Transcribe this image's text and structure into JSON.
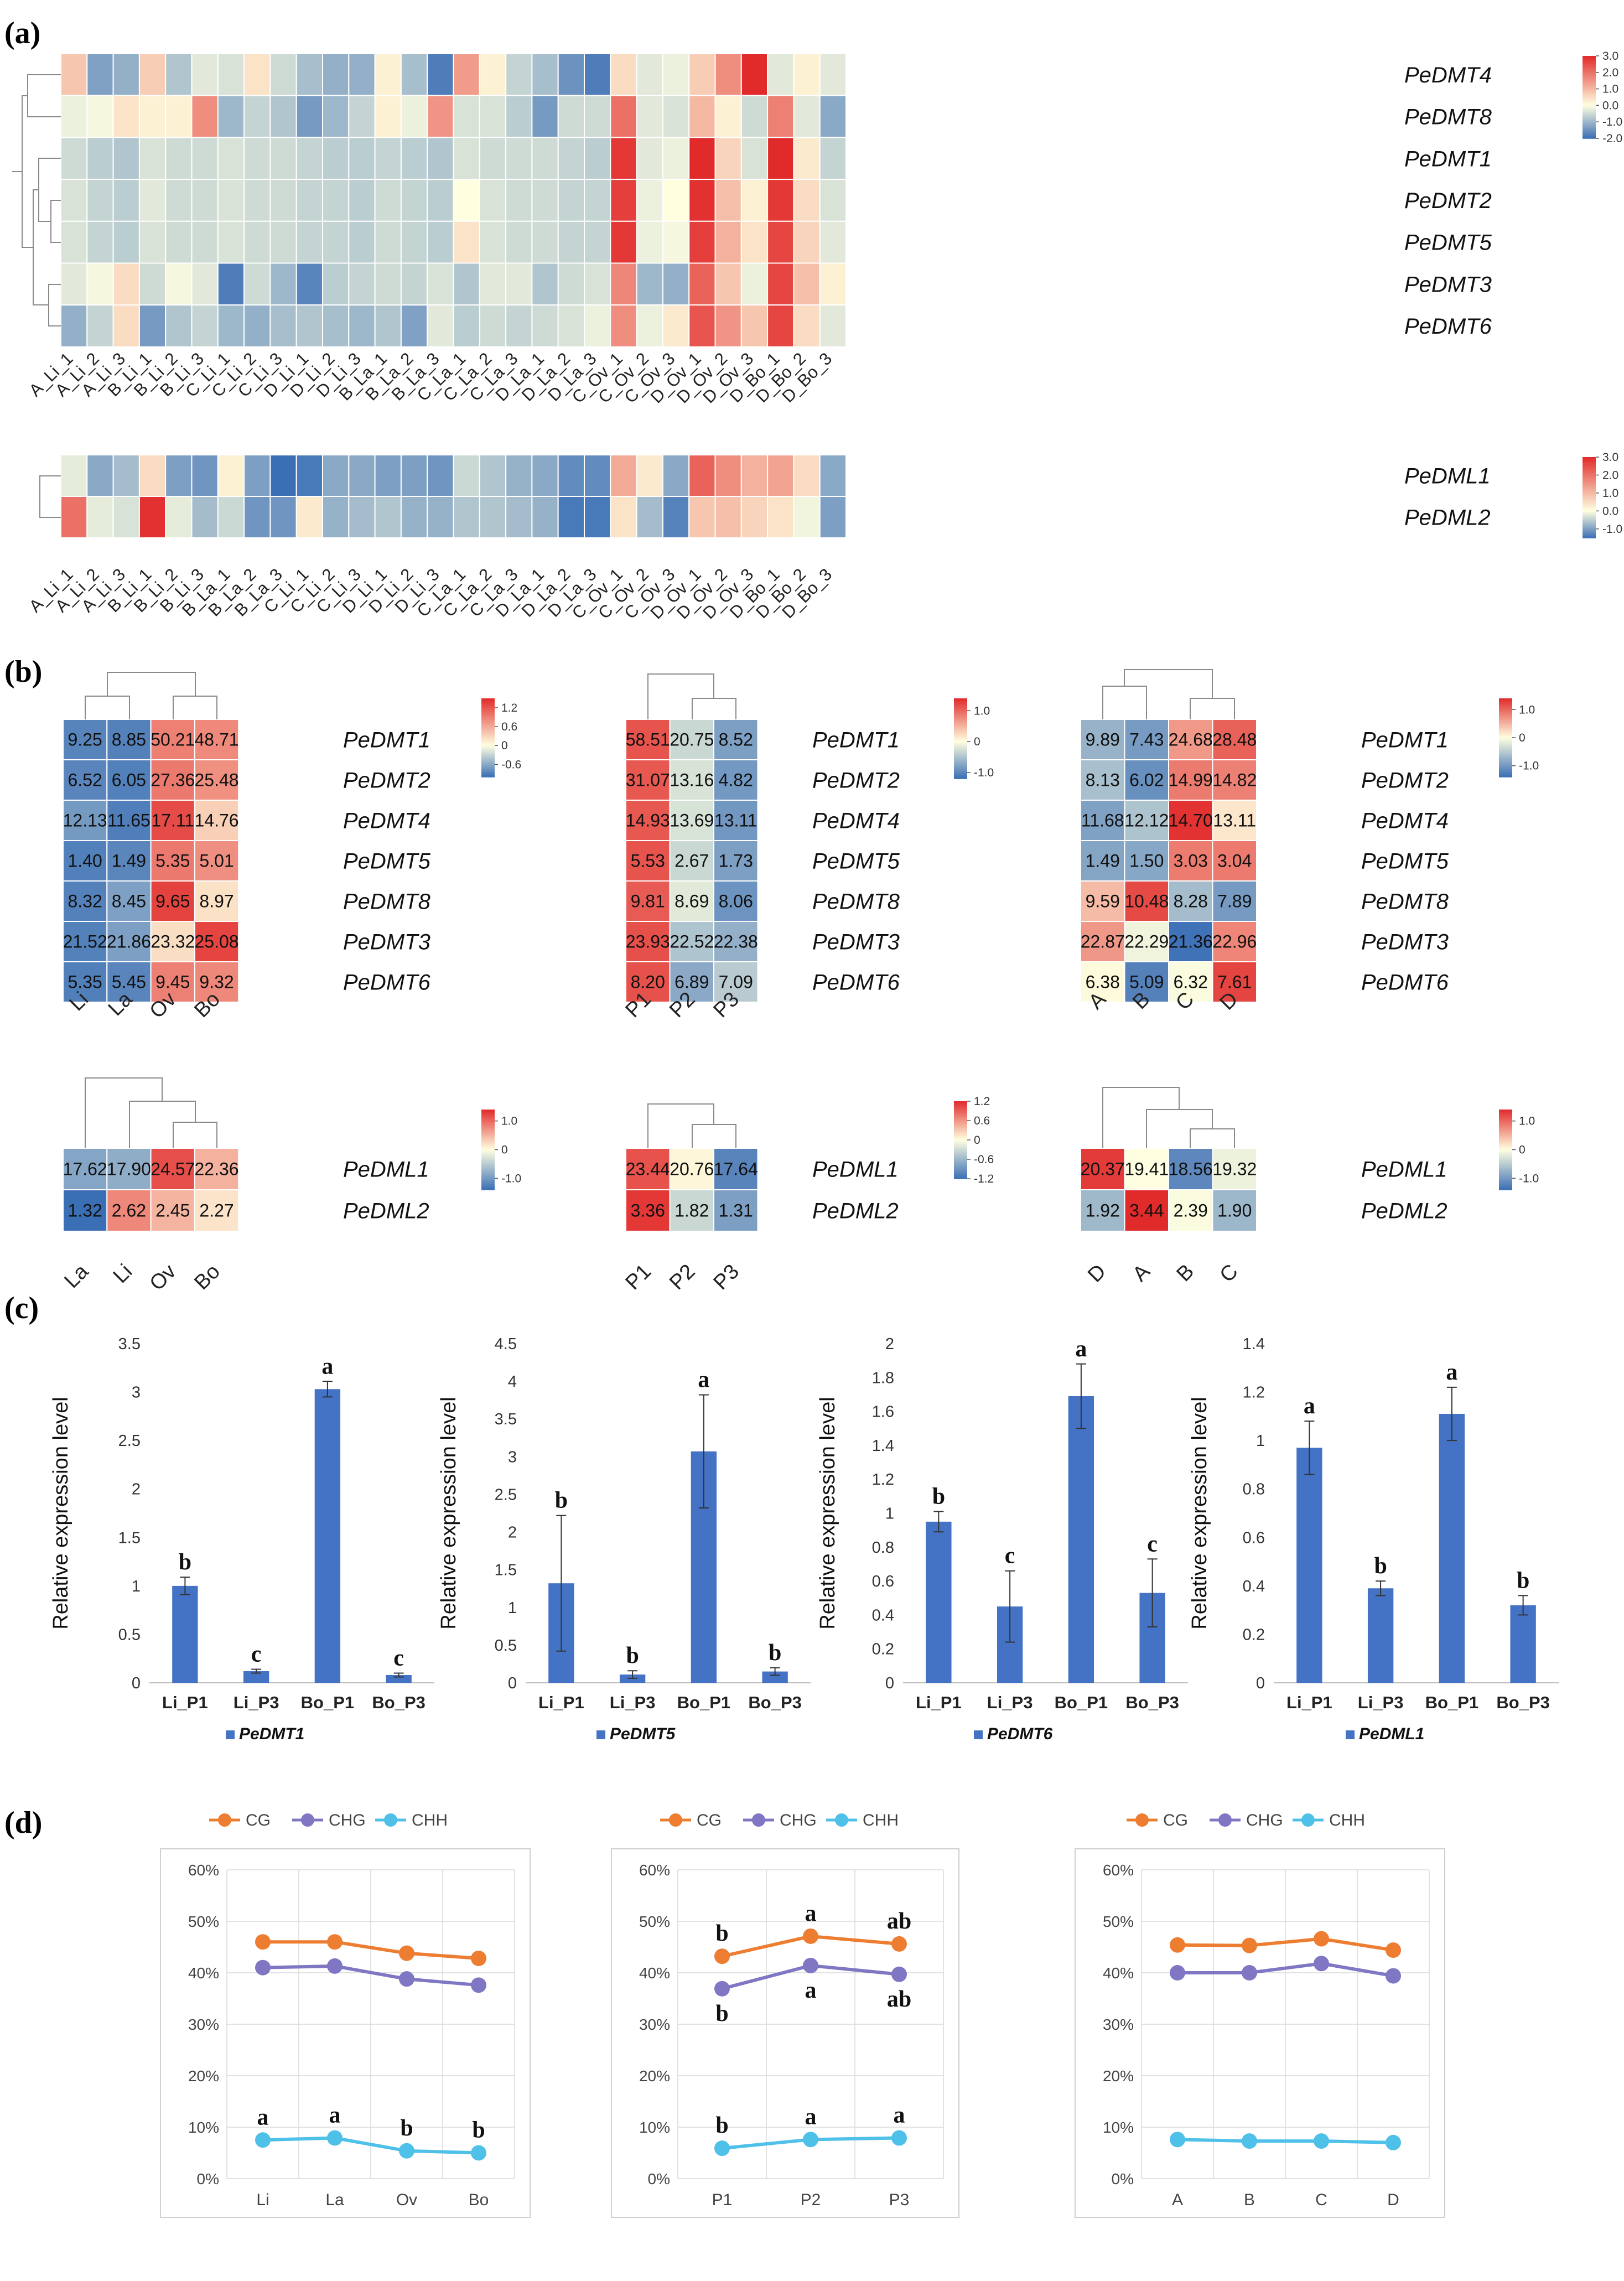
{
  "colors": {
    "low": "#3b6fb5",
    "mid": "#ffffe0",
    "high": "#e12a2a",
    "bar": "#4472c4",
    "cg": "#ed7d31",
    "chg": "#7f77c3",
    "chh": "#4fc1e9",
    "grid": "#d9d9d9"
  },
  "chart_data": [
    {
      "type": "heatmap",
      "panel": "(a)",
      "id": "a1",
      "rows": [
        "PeDMT4",
        "PeDMT8",
        "PeDMT1",
        "PeDMT2",
        "PeDMT5",
        "PeDMT3",
        "PeDMT6"
      ],
      "columns": [
        "A_Li_1",
        "A_Li_2",
        "A_Li_3",
        "B_Li_1",
        "B_Li_2",
        "B_Li_3",
        "C_Li_1",
        "C_Li_2",
        "C_Li_3",
        "D_Li_1",
        "D_Li_2",
        "D_Li_3",
        "B_La_1",
        "B_La_2",
        "B_La_3",
        "C_La_1",
        "C_La_2",
        "C_La_3",
        "D_La_1",
        "D_La_2",
        "D_La_3",
        "C_Ov_1",
        "C_Ov_2",
        "C_Ov_3",
        "D_Ov_1",
        "D_Ov_2",
        "D_Ov_3",
        "D_Bo_1",
        "D_Bo_2",
        "D_Bo_3"
      ],
      "values": [
        [
          0.8,
          -1.3,
          -1.1,
          0.7,
          -0.8,
          -0.3,
          -0.4,
          0.4,
          -0.5,
          -0.9,
          -1.1,
          -1.1,
          0.2,
          -0.9,
          -1.8,
          1.4,
          0.2,
          -0.6,
          -0.9,
          -1.5,
          -1.8,
          0.5,
          -0.3,
          -0.2,
          0.7,
          1.6,
          3.0,
          -0.3,
          0.2,
          -0.3
        ],
        [
          -0.2,
          -0.1,
          0.4,
          0.2,
          0.2,
          1.6,
          -1.0,
          -0.6,
          -0.8,
          -1.4,
          -1.0,
          -0.6,
          0.2,
          -0.2,
          1.5,
          -0.4,
          -0.4,
          -0.7,
          -1.4,
          -0.5,
          -0.5,
          2.0,
          -0.3,
          -0.4,
          1.0,
          0.2,
          -0.5,
          1.8,
          -0.3,
          -1.2
        ],
        [
          -0.5,
          -0.7,
          -0.8,
          -0.4,
          -0.5,
          -0.5,
          -0.4,
          -0.5,
          -0.5,
          -0.6,
          -0.7,
          -0.7,
          -0.6,
          -0.7,
          -0.8,
          -0.4,
          -0.5,
          -0.5,
          -0.5,
          -0.6,
          -0.7,
          2.8,
          -0.3,
          -0.2,
          3.2,
          0.6,
          -0.4,
          3.0,
          0.3,
          -0.6
        ],
        [
          -0.4,
          -0.6,
          -0.7,
          -0.3,
          -0.5,
          -0.5,
          -0.4,
          -0.5,
          -0.5,
          -0.6,
          -0.6,
          -0.7,
          -0.5,
          -0.6,
          -0.7,
          0.0,
          -0.4,
          -0.5,
          -0.5,
          -0.6,
          -0.6,
          2.7,
          -0.2,
          0.0,
          2.9,
          0.9,
          0.2,
          2.8,
          0.5,
          -0.4
        ],
        [
          -0.4,
          -0.6,
          -0.7,
          -0.4,
          -0.5,
          -0.5,
          -0.4,
          -0.5,
          -0.5,
          -0.6,
          -0.6,
          -0.7,
          -0.5,
          -0.6,
          -0.7,
          0.4,
          -0.4,
          -0.5,
          -0.5,
          -0.6,
          -0.6,
          2.8,
          -0.2,
          -0.1,
          2.7,
          1.1,
          0.4,
          2.6,
          0.6,
          -0.3
        ],
        [
          -0.3,
          -0.1,
          0.5,
          -0.5,
          -0.1,
          -0.3,
          -1.8,
          -0.5,
          -1.0,
          -1.7,
          -0.7,
          -0.6,
          -0.5,
          -0.6,
          -0.4,
          -0.8,
          -0.3,
          -0.3,
          -0.8,
          -0.5,
          -0.4,
          1.7,
          -1.0,
          -1.1,
          2.2,
          0.8,
          -0.2,
          2.6,
          0.9,
          0.2
        ],
        [
          -1.1,
          -0.6,
          0.5,
          -1.4,
          -0.8,
          -0.6,
          -1.0,
          -1.1,
          -0.9,
          -0.8,
          -0.9,
          -1.0,
          -0.8,
          -1.3,
          -0.3,
          -0.7,
          -0.5,
          -0.6,
          -0.5,
          -0.4,
          -0.2,
          1.6,
          -0.2,
          0.3,
          2.4,
          1.5,
          0.8,
          2.6,
          0.5,
          -0.3
        ]
      ],
      "colorbar": {
        "min": -2.0,
        "max": 3.0,
        "ticks": [
          "3.0",
          "2.0",
          "1.0",
          "0.0",
          "-1.0",
          "-2.0"
        ]
      }
    },
    {
      "type": "heatmap",
      "panel": "(a)",
      "id": "a2",
      "rows": [
        "PeDML1",
        "PeDML2"
      ],
      "columns": [
        "A_Li_1",
        "A_Li_2",
        "A_Li_3",
        "B_Li_1",
        "B_Li_2",
        "B_Li_3",
        "B_La_1",
        "B_La_2",
        "B_La_3",
        "C_Li_1",
        "C_Li_2",
        "C_Li_3",
        "D_Li_1",
        "D_Li_2",
        "D_Li_3",
        "C_La_1",
        "C_La_2",
        "C_La_3",
        "D_La_1",
        "D_La_2",
        "D_La_3",
        "C_Ov_1",
        "C_Ov_2",
        "C_Ov_3",
        "D_Ov_1",
        "D_Ov_2",
        "D_Ov_3",
        "D_Bo_1",
        "D_Bo_2",
        "D_Bo_3"
      ],
      "values": [
        [
          -0.2,
          -0.9,
          -0.7,
          0.5,
          -1.0,
          -1.1,
          0.2,
          -1.0,
          -1.5,
          -1.4,
          -0.9,
          -0.9,
          -1.0,
          -1.0,
          -1.1,
          -0.4,
          -0.6,
          -0.8,
          -0.9,
          -1.2,
          -1.2,
          1.2,
          0.3,
          -0.9,
          2.2,
          1.6,
          1.1,
          1.3,
          0.5,
          -0.9
        ],
        [
          2.0,
          -0.2,
          -0.3,
          2.9,
          -0.2,
          -0.7,
          -0.4,
          -1.1,
          -1.1,
          0.3,
          -0.8,
          -0.7,
          -0.6,
          -0.8,
          -0.8,
          -0.6,
          -0.6,
          -0.7,
          -0.8,
          -1.4,
          -1.4,
          0.4,
          -0.7,
          -1.3,
          0.8,
          0.9,
          0.6,
          0.4,
          -0.1,
          -1.0
        ]
      ],
      "colorbar": {
        "min": -1.5,
        "max": 3.0,
        "ticks": [
          "3.0",
          "2.0",
          "1.0",
          "0.0",
          "-1.0"
        ]
      }
    },
    {
      "type": "heatmap",
      "panel": "(b)",
      "id": "b1",
      "rows": [
        "PeDMT1",
        "PeDMT2",
        "PeDMT4",
        "PeDMT5",
        "PeDMT8",
        "PeDMT3",
        "PeDMT6"
      ],
      "columns": [
        "Li",
        "La",
        "Ov",
        "Bo"
      ],
      "values": [
        [
          9.25,
          8.85,
          50.21,
          48.71
        ],
        [
          6.52,
          6.05,
          27.36,
          25.48
        ],
        [
          12.13,
          11.65,
          17.11,
          14.76
        ],
        [
          1.4,
          1.49,
          5.35,
          5.01
        ],
        [
          8.32,
          8.45,
          9.65,
          8.97
        ],
        [
          21.52,
          21.86,
          23.32,
          25.08
        ],
        [
          5.35,
          5.45,
          9.45,
          9.32
        ]
      ],
      "labels": [
        [
          "9.25",
          "8.85",
          "50.21",
          "48.71"
        ],
        [
          "6.52",
          "6.05",
          "27.36",
          "25.48"
        ],
        [
          "12.13",
          "11.65",
          "17.11",
          "14.76"
        ],
        [
          "1.40",
          "1.49",
          "5.35",
          "5.01"
        ],
        [
          "8.32",
          "8.45",
          "9.65",
          "8.97"
        ],
        [
          "21.52",
          "21.86",
          "23.32",
          "25.08"
        ],
        [
          "5.35",
          "5.45",
          "9.45",
          "9.32"
        ]
      ],
      "colorbar": {
        "min": -1.0,
        "max": 1.5,
        "ticks": [
          "1.2",
          "0.6",
          "0",
          "-0.6"
        ]
      }
    },
    {
      "type": "heatmap",
      "panel": "(b)",
      "id": "b2",
      "rows": [
        "PeDMT1",
        "PeDMT2",
        "PeDMT4",
        "PeDMT5",
        "PeDMT8",
        "PeDMT3",
        "PeDMT6"
      ],
      "columns": [
        "P1",
        "P2",
        "P3"
      ],
      "values": [
        [
          58.51,
          20.75,
          8.52
        ],
        [
          31.07,
          13.16,
          4.82
        ],
        [
          14.93,
          13.69,
          13.11
        ],
        [
          5.53,
          2.67,
          1.73
        ],
        [
          9.81,
          8.69,
          8.06
        ],
        [
          23.93,
          22.52,
          22.38
        ],
        [
          8.2,
          6.89,
          7.09
        ]
      ],
      "labels": [
        [
          "58.51",
          "20.75",
          "8.52"
        ],
        [
          "31.07",
          "13.16",
          "4.82"
        ],
        [
          "14.93",
          "13.69",
          "13.11"
        ],
        [
          "5.53",
          "2.67",
          "1.73"
        ],
        [
          "9.81",
          "8.69",
          "8.06"
        ],
        [
          "23.93",
          "22.52",
          "22.38"
        ],
        [
          "8.20",
          "6.89",
          "7.09"
        ]
      ],
      "colorbar": {
        "min": -1.2,
        "max": 1.4,
        "ticks": [
          "1.0",
          "0",
          "-1.0"
        ]
      }
    },
    {
      "type": "heatmap",
      "panel": "(b)",
      "id": "b3",
      "rows": [
        "PeDMT1",
        "PeDMT2",
        "PeDMT4",
        "PeDMT5",
        "PeDMT8",
        "PeDMT3",
        "PeDMT6"
      ],
      "columns": [
        "A",
        "B",
        "C",
        "D"
      ],
      "values": [
        [
          9.89,
          7.43,
          24.68,
          28.48
        ],
        [
          8.13,
          6.02,
          14.99,
          14.82
        ],
        [
          11.68,
          12.12,
          14.7,
          13.11
        ],
        [
          1.49,
          1.5,
          3.03,
          3.04
        ],
        [
          9.59,
          10.48,
          8.28,
          7.89
        ],
        [
          22.87,
          22.29,
          21.36,
          22.96
        ],
        [
          6.38,
          5.09,
          6.32,
          7.61
        ]
      ],
      "labels": [
        [
          "9.89",
          "7.43",
          "24.68",
          "28.48"
        ],
        [
          "8.13",
          "6.02",
          "14.99",
          "14.82"
        ],
        [
          "11.68",
          "12.12",
          "14.70",
          "13.11"
        ],
        [
          "1.49",
          "1.50",
          "3.03",
          "3.04"
        ],
        [
          "9.59",
          "10.48",
          "8.28",
          "7.89"
        ],
        [
          "22.87",
          "22.29",
          "21.36",
          "22.96"
        ],
        [
          "6.38",
          "5.09",
          "6.32",
          "7.61"
        ]
      ],
      "colorbar": {
        "min": -1.4,
        "max": 1.4,
        "ticks": [
          "1.0",
          "0",
          "-1.0"
        ]
      }
    },
    {
      "type": "heatmap",
      "panel": "(b)",
      "id": "b4",
      "rows": [
        "PeDML1",
        "PeDML2"
      ],
      "columns": [
        "La",
        "Li",
        "Ov",
        "Bo"
      ],
      "values": [
        [
          17.62,
          17.9,
          24.57,
          22.36
        ],
        [
          1.32,
          2.62,
          2.45,
          2.27
        ]
      ],
      "labels": [
        [
          "17.62",
          "17.90",
          "24.57",
          "22.36"
        ],
        [
          "1.32",
          "2.62",
          "2.45",
          "2.27"
        ]
      ],
      "colorbar": {
        "min": -1.4,
        "max": 1.4,
        "ticks": [
          "1.0",
          "0",
          "-1.0"
        ]
      }
    },
    {
      "type": "heatmap",
      "panel": "(b)",
      "id": "b5",
      "rows": [
        "PeDML1",
        "PeDML2"
      ],
      "columns": [
        "P1",
        "P2",
        "P3"
      ],
      "values": [
        [
          23.44,
          20.76,
          17.64
        ],
        [
          3.36,
          1.82,
          1.31
        ]
      ],
      "labels": [
        [
          "23.44",
          "20.76",
          "17.64"
        ],
        [
          "3.36",
          "1.82",
          "1.31"
        ]
      ],
      "colorbar": {
        "min": -1.2,
        "max": 1.2,
        "ticks": [
          "1.2",
          "0.6",
          "0",
          "-0.6",
          "-1.2"
        ]
      }
    },
    {
      "type": "heatmap",
      "panel": "(b)",
      "id": "b6",
      "rows": [
        "PeDML1",
        "PeDML2"
      ],
      "columns": [
        "D",
        "A",
        "B",
        "C"
      ],
      "values": [
        [
          20.37,
          19.41,
          18.56,
          19.32
        ],
        [
          1.92,
          3.44,
          2.39,
          1.9
        ]
      ],
      "labels": [
        [
          "20.37",
          "19.41",
          "18.56",
          "19.32"
        ],
        [
          "1.92",
          "3.44",
          "2.39",
          "1.90"
        ]
      ],
      "colorbar": {
        "min": -1.4,
        "max": 1.4,
        "ticks": [
          "1.0",
          "0",
          "-1.0"
        ]
      }
    },
    {
      "type": "bar",
      "panel": "(c)",
      "id": "c1",
      "series_name": "PeDMT1",
      "categories": [
        "Li_P1",
        "Li_P3",
        "Bo_P1",
        "Bo_P3"
      ],
      "values": [
        1.0,
        0.12,
        3.03,
        0.08
      ],
      "errors": [
        0.09,
        0.02,
        0.08,
        0.02
      ],
      "letters": [
        "b",
        "c",
        "a",
        "c"
      ],
      "ylim": [
        0,
        3.5
      ],
      "yticks": [
        "0",
        "0.5",
        "1",
        "1.5",
        "2",
        "2.5",
        "3",
        "3.5"
      ],
      "ylabel": "Relative expression level"
    },
    {
      "type": "bar",
      "panel": "(c)",
      "id": "c2",
      "series_name": "PeDMT5",
      "categories": [
        "Li_P1",
        "Li_P3",
        "Bo_P1",
        "Bo_P3"
      ],
      "values": [
        1.32,
        0.11,
        3.07,
        0.15
      ],
      "errors": [
        0.9,
        0.05,
        0.75,
        0.05
      ],
      "letters": [
        "b",
        "b",
        "a",
        "b"
      ],
      "ylim": [
        0,
        4.5
      ],
      "yticks": [
        "0",
        "0.5",
        "1",
        "1.5",
        "2",
        "2.5",
        "3",
        "3.5",
        "4",
        "4.5"
      ],
      "ylabel": "Relative expression level"
    },
    {
      "type": "bar",
      "panel": "(c)",
      "id": "c3",
      "series_name": "PeDMT6",
      "categories": [
        "Li_P1",
        "Li_P3",
        "Bo_P1",
        "Bo_P3"
      ],
      "values": [
        0.95,
        0.45,
        1.69,
        0.53
      ],
      "errors": [
        0.06,
        0.21,
        0.19,
        0.2
      ],
      "letters": [
        "b",
        "c",
        "a",
        "c"
      ],
      "ylim": [
        0,
        2
      ],
      "yticks": [
        "0",
        "0.2",
        "0.4",
        "0.6",
        "0.8",
        "1",
        "1.2",
        "1.4",
        "1.6",
        "1.8",
        "2"
      ],
      "ylabel": "Relative expression level"
    },
    {
      "type": "bar",
      "panel": "(c)",
      "id": "c4",
      "series_name": "PeDML1",
      "categories": [
        "Li_P1",
        "Li_P3",
        "Bo_P1",
        "Bo_P3"
      ],
      "values": [
        0.97,
        0.39,
        1.11,
        0.32
      ],
      "errors": [
        0.11,
        0.03,
        0.11,
        0.04
      ],
      "letters": [
        "a",
        "b",
        "a",
        "b"
      ],
      "ylim": [
        0,
        1.4
      ],
      "yticks": [
        "0",
        "0.2",
        "0.4",
        "0.6",
        "0.8",
        "1",
        "1.2",
        "1.4"
      ],
      "ylabel": "Relative expression level"
    },
    {
      "type": "line",
      "panel": "(d)",
      "id": "d1",
      "categories": [
        "Li",
        "La",
        "Ov",
        "Bo"
      ],
      "legend": [
        "CG",
        "CHG",
        "CHH"
      ],
      "ylim": [
        0,
        60
      ],
      "yticks": [
        "0%",
        "10%",
        "20%",
        "30%",
        "40%",
        "50%",
        "60%"
      ],
      "series": [
        {
          "name": "CG",
          "values": [
            46.0,
            46.0,
            43.8,
            42.8
          ],
          "letters": []
        },
        {
          "name": "CHG",
          "values": [
            41.0,
            41.3,
            38.8,
            37.6
          ],
          "letters": []
        },
        {
          "name": "CHH",
          "values": [
            7.5,
            7.9,
            5.4,
            5.0
          ],
          "letters": [
            "a",
            "a",
            "b",
            "b"
          ]
        }
      ]
    },
    {
      "type": "line",
      "panel": "(d)",
      "id": "d2",
      "categories": [
        "P1",
        "P2",
        "P3"
      ],
      "legend": [
        "CG",
        "CHG",
        "CHH"
      ],
      "ylim": [
        0,
        60
      ],
      "yticks": [
        "0%",
        "10%",
        "20%",
        "30%",
        "40%",
        "50%",
        "60%"
      ],
      "series": [
        {
          "name": "CG",
          "values": [
            43.2,
            47.1,
            45.6
          ],
          "letters": [
            "b",
            "a",
            "ab"
          ]
        },
        {
          "name": "CHG",
          "values": [
            36.9,
            41.4,
            39.7
          ],
          "letters": [
            "b",
            "a",
            "ab"
          ]
        },
        {
          "name": "CHH",
          "values": [
            5.9,
            7.6,
            7.9
          ],
          "letters": [
            "b",
            "a",
            "a"
          ]
        }
      ]
    },
    {
      "type": "line",
      "panel": "(d)",
      "id": "d3",
      "categories": [
        "A",
        "B",
        "C",
        "D"
      ],
      "legend": [
        "CG",
        "CHG",
        "CHH"
      ],
      "ylim": [
        0,
        60
      ],
      "yticks": [
        "0%",
        "10%",
        "20%",
        "30%",
        "40%",
        "50%",
        "60%"
      ],
      "series": [
        {
          "name": "CG",
          "values": [
            45.4,
            45.3,
            46.6,
            44.4
          ],
          "letters": []
        },
        {
          "name": "CHG",
          "values": [
            40.0,
            40.0,
            41.8,
            39.4
          ],
          "letters": []
        },
        {
          "name": "CHH",
          "values": [
            7.6,
            7.3,
            7.3,
            7.0
          ],
          "letters": []
        }
      ]
    }
  ],
  "panels": {
    "a": "(a)",
    "b": "(b)",
    "c": "(c)",
    "d": "(d)"
  }
}
